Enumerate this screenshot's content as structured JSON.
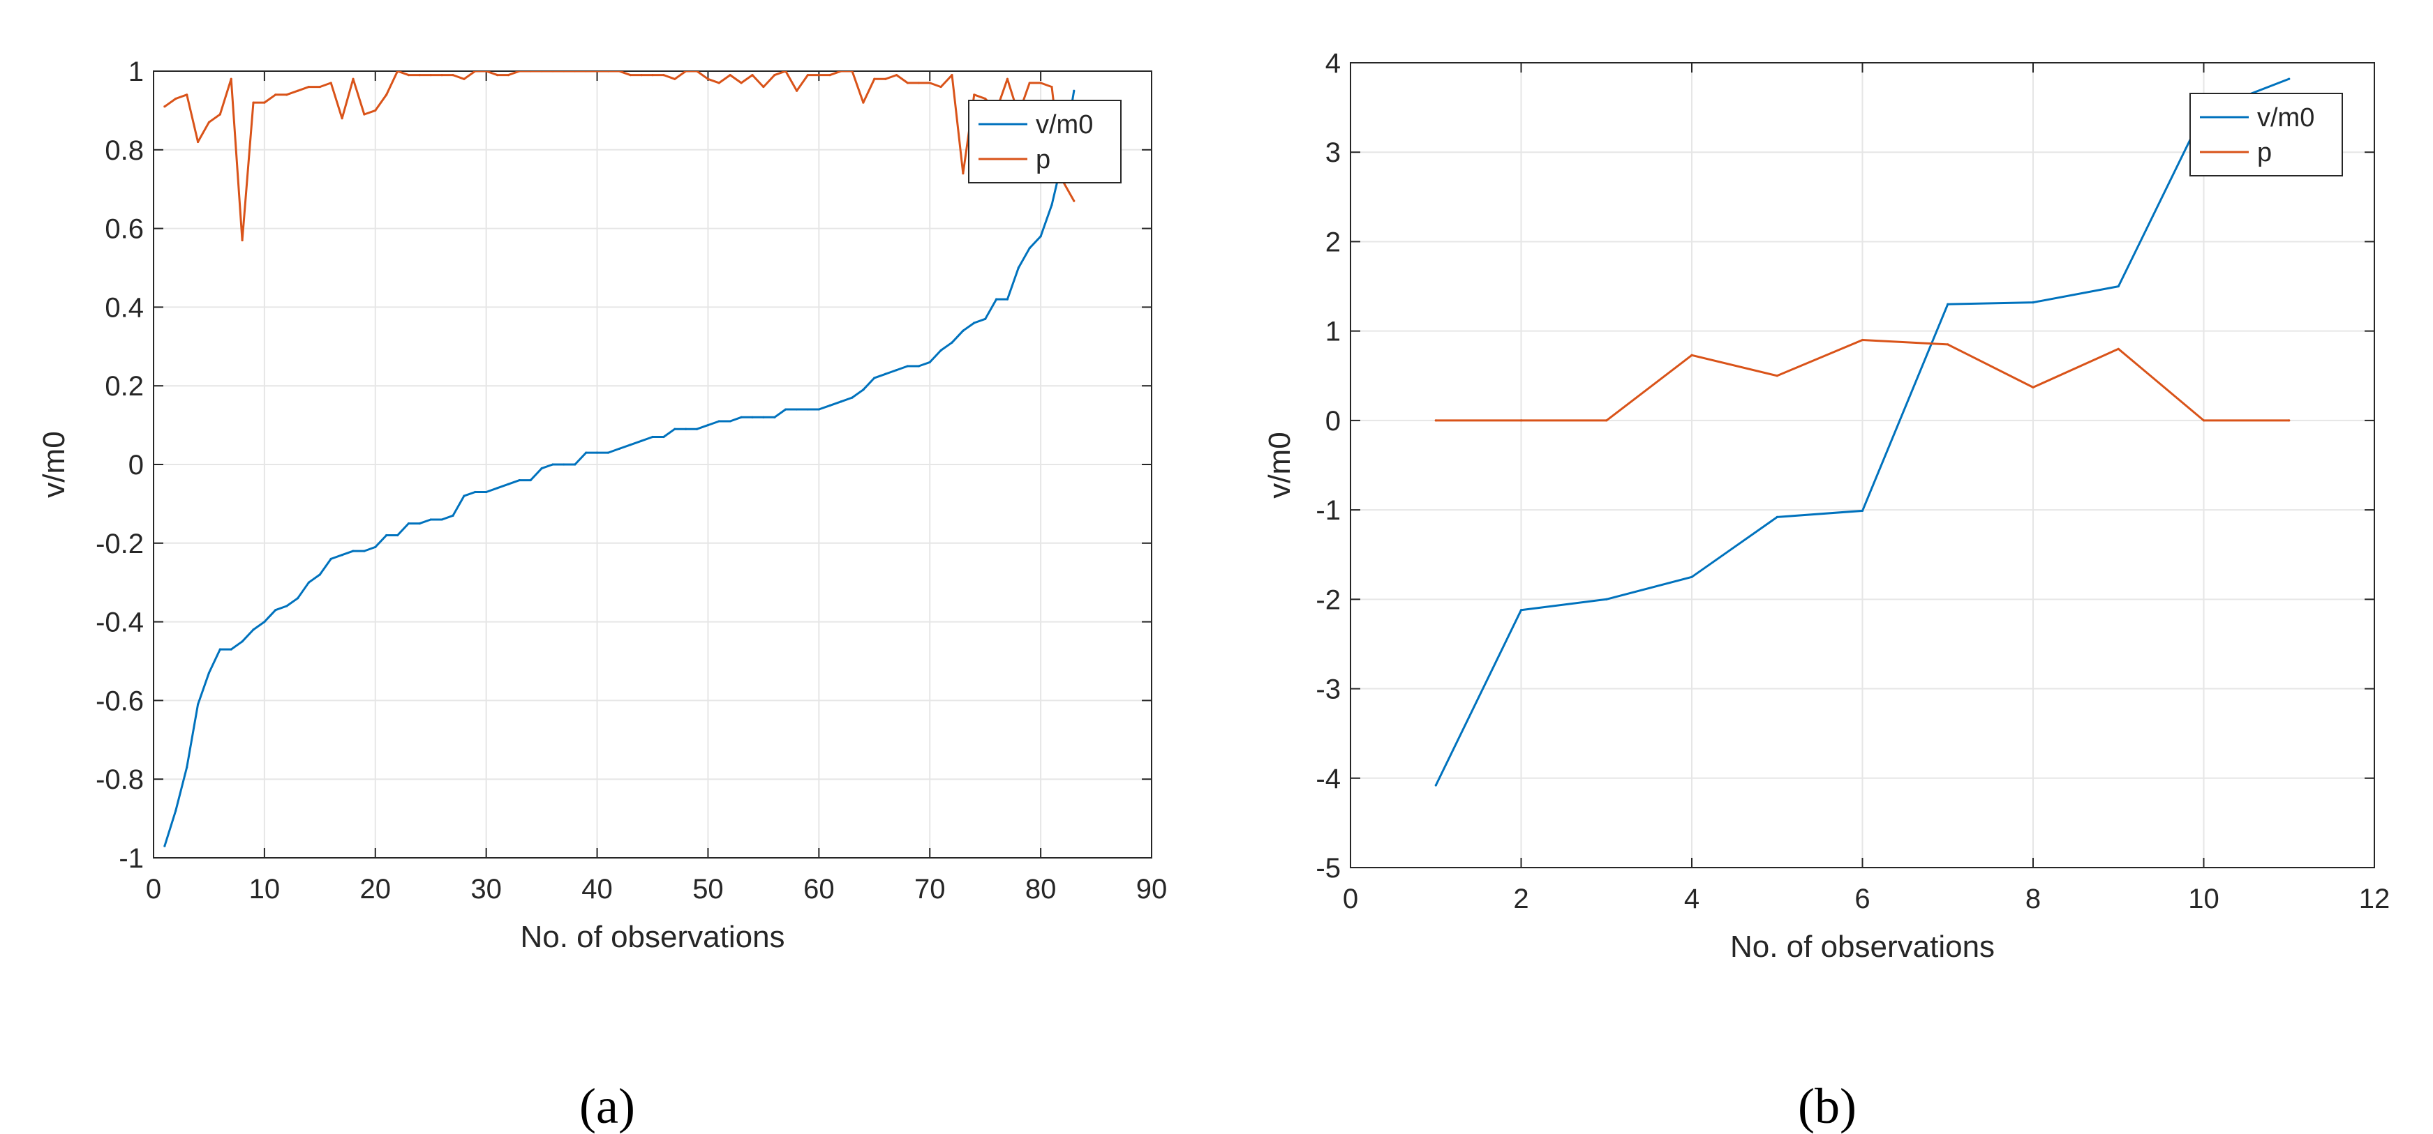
{
  "figure": {
    "panel_labels": [
      "(a)",
      "(b)"
    ]
  },
  "chart_data": [
    {
      "type": "line",
      "panel": "(a)",
      "title": "",
      "xlabel": "No. of observations",
      "ylabel": "v/m0",
      "xlim": [
        0,
        90
      ],
      "ylim": [
        -1,
        1
      ],
      "xticks": [
        0,
        10,
        20,
        30,
        40,
        50,
        60,
        70,
        80,
        90
      ],
      "yticks": [
        -1,
        -0.8,
        -0.6,
        -0.4,
        -0.2,
        0,
        0.2,
        0.4,
        0.6,
        0.8,
        1
      ],
      "grid": true,
      "legend_position": "top-right",
      "colors": {
        "v/m0": "#0072BD",
        "p": "#D95319"
      },
      "series": [
        {
          "name": "v/m0",
          "x": [
            1,
            2,
            3,
            4,
            5,
            6,
            7,
            8,
            9,
            10,
            11,
            12,
            13,
            14,
            15,
            16,
            17,
            18,
            19,
            20,
            21,
            22,
            23,
            24,
            25,
            26,
            27,
            28,
            29,
            30,
            31,
            32,
            33,
            34,
            35,
            36,
            37,
            38,
            39,
            40,
            41,
            42,
            43,
            44,
            45,
            46,
            47,
            48,
            49,
            50,
            51,
            52,
            53,
            54,
            55,
            56,
            57,
            58,
            59,
            60,
            61,
            62,
            63,
            64,
            65,
            66,
            67,
            68,
            69,
            70,
            71,
            72,
            73,
            74,
            75,
            76,
            77,
            78,
            79,
            80,
            81,
            82,
            83
          ],
          "values": [
            -0.97,
            -0.88,
            -0.77,
            -0.61,
            -0.53,
            -0.47,
            -0.47,
            -0.45,
            -0.42,
            -0.4,
            -0.37,
            -0.36,
            -0.34,
            -0.3,
            -0.28,
            -0.24,
            -0.23,
            -0.22,
            -0.22,
            -0.21,
            -0.18,
            -0.18,
            -0.15,
            -0.15,
            -0.14,
            -0.14,
            -0.13,
            -0.08,
            -0.07,
            -0.07,
            -0.06,
            -0.05,
            -0.04,
            -0.04,
            -0.01,
            0.0,
            0.0,
            0.0,
            0.03,
            0.03,
            0.03,
            0.04,
            0.05,
            0.06,
            0.07,
            0.07,
            0.09,
            0.09,
            0.09,
            0.1,
            0.11,
            0.11,
            0.12,
            0.12,
            0.12,
            0.12,
            0.14,
            0.14,
            0.14,
            0.14,
            0.15,
            0.16,
            0.17,
            0.19,
            0.22,
            0.23,
            0.24,
            0.25,
            0.25,
            0.26,
            0.29,
            0.31,
            0.34,
            0.36,
            0.37,
            0.42,
            0.42,
            0.5,
            0.55,
            0.58,
            0.66,
            0.78,
            0.95
          ]
        },
        {
          "name": "p",
          "x": [
            1,
            2,
            3,
            4,
            5,
            6,
            7,
            8,
            9,
            10,
            11,
            12,
            13,
            14,
            15,
            16,
            17,
            18,
            19,
            20,
            21,
            22,
            23,
            24,
            25,
            26,
            27,
            28,
            29,
            30,
            31,
            32,
            33,
            34,
            35,
            36,
            37,
            38,
            39,
            40,
            41,
            42,
            43,
            44,
            45,
            46,
            47,
            48,
            49,
            50,
            51,
            52,
            53,
            54,
            55,
            56,
            57,
            58,
            59,
            60,
            61,
            62,
            63,
            64,
            65,
            66,
            67,
            68,
            69,
            70,
            71,
            72,
            73,
            74,
            75,
            76,
            77,
            78,
            79,
            80,
            81,
            82,
            83
          ],
          "values": [
            0.91,
            0.93,
            0.94,
            0.82,
            0.87,
            0.89,
            0.98,
            0.57,
            0.92,
            0.92,
            0.94,
            0.94,
            0.95,
            0.96,
            0.96,
            0.97,
            0.88,
            0.98,
            0.89,
            0.9,
            0.94,
            1.0,
            0.99,
            0.99,
            0.99,
            0.99,
            0.99,
            0.98,
            1.0,
            1.0,
            0.99,
            0.99,
            1.0,
            1.0,
            1.0,
            1.0,
            1.0,
            1.0,
            1.0,
            1.0,
            1.0,
            1.0,
            0.99,
            0.99,
            0.99,
            0.99,
            0.98,
            1.0,
            1.0,
            0.98,
            0.97,
            0.99,
            0.97,
            0.99,
            0.96,
            0.99,
            1.0,
            0.95,
            0.99,
            0.99,
            0.99,
            1.0,
            1.0,
            0.92,
            0.98,
            0.98,
            0.99,
            0.97,
            0.97,
            0.97,
            0.96,
            0.99,
            0.74,
            0.94,
            0.93,
            0.9,
            0.98,
            0.89,
            0.97,
            0.97,
            0.96,
            0.72,
            0.67
          ]
        }
      ]
    },
    {
      "type": "line",
      "panel": "(b)",
      "title": "",
      "xlabel": "No. of observations",
      "ylabel": "v/m0",
      "xlim": [
        0,
        12
      ],
      "ylim": [
        -5,
        4
      ],
      "xticks": [
        0,
        2,
        4,
        6,
        8,
        10,
        12
      ],
      "yticks": [
        -5,
        -4,
        -3,
        -2,
        -1,
        0,
        1,
        2,
        3,
        4
      ],
      "grid": true,
      "legend_position": "top-right",
      "colors": {
        "v/m0": "#0072BD",
        "p": "#D95319"
      },
      "series": [
        {
          "name": "v/m0",
          "x": [
            1,
            2,
            3,
            4,
            5,
            6,
            7,
            8,
            9,
            10,
            11
          ],
          "values": [
            -4.08,
            -2.12,
            -2.0,
            -1.75,
            -1.08,
            -1.01,
            1.3,
            1.32,
            1.5,
            3.45,
            3.82
          ]
        },
        {
          "name": "p",
          "x": [
            1,
            2,
            3,
            4,
            5,
            6,
            7,
            8,
            9,
            10,
            11
          ],
          "values": [
            0,
            0,
            0,
            0.73,
            0.5,
            0.9,
            0.85,
            0.37,
            0.8,
            0,
            0
          ]
        }
      ]
    }
  ]
}
